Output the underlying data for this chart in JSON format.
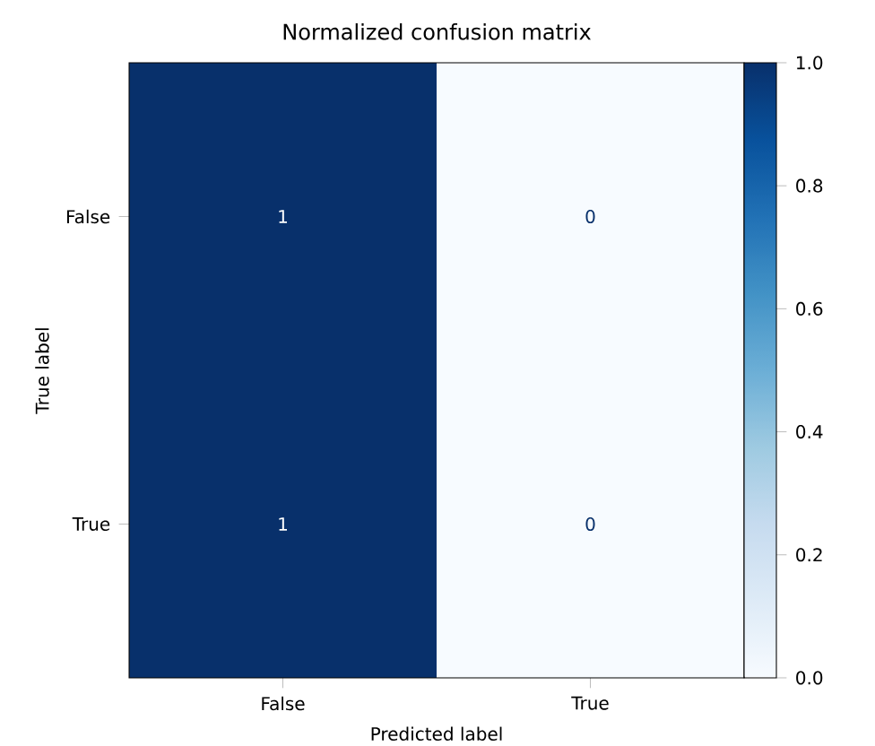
{
  "chart_data": {
    "type": "heatmap",
    "title": "Normalized confusion matrix",
    "xlabel": "Predicted label",
    "ylabel": "True label",
    "categories": [
      "False",
      "True"
    ],
    "y_categories": [
      "False",
      "True"
    ],
    "cells": [
      [
        1,
        0
      ],
      [
        1,
        0
      ]
    ],
    "data_labels": true,
    "clim": [
      0,
      1
    ],
    "cticks": [
      {
        "value": 0,
        "label": "0.0"
      },
      {
        "value": 0.2,
        "label": "0.2"
      },
      {
        "value": 0.4,
        "label": "0.4"
      },
      {
        "value": 0.6,
        "label": "0.6"
      },
      {
        "value": 0.8,
        "label": "0.8"
      },
      {
        "value": 1,
        "label": "1.0"
      }
    ]
  }
}
